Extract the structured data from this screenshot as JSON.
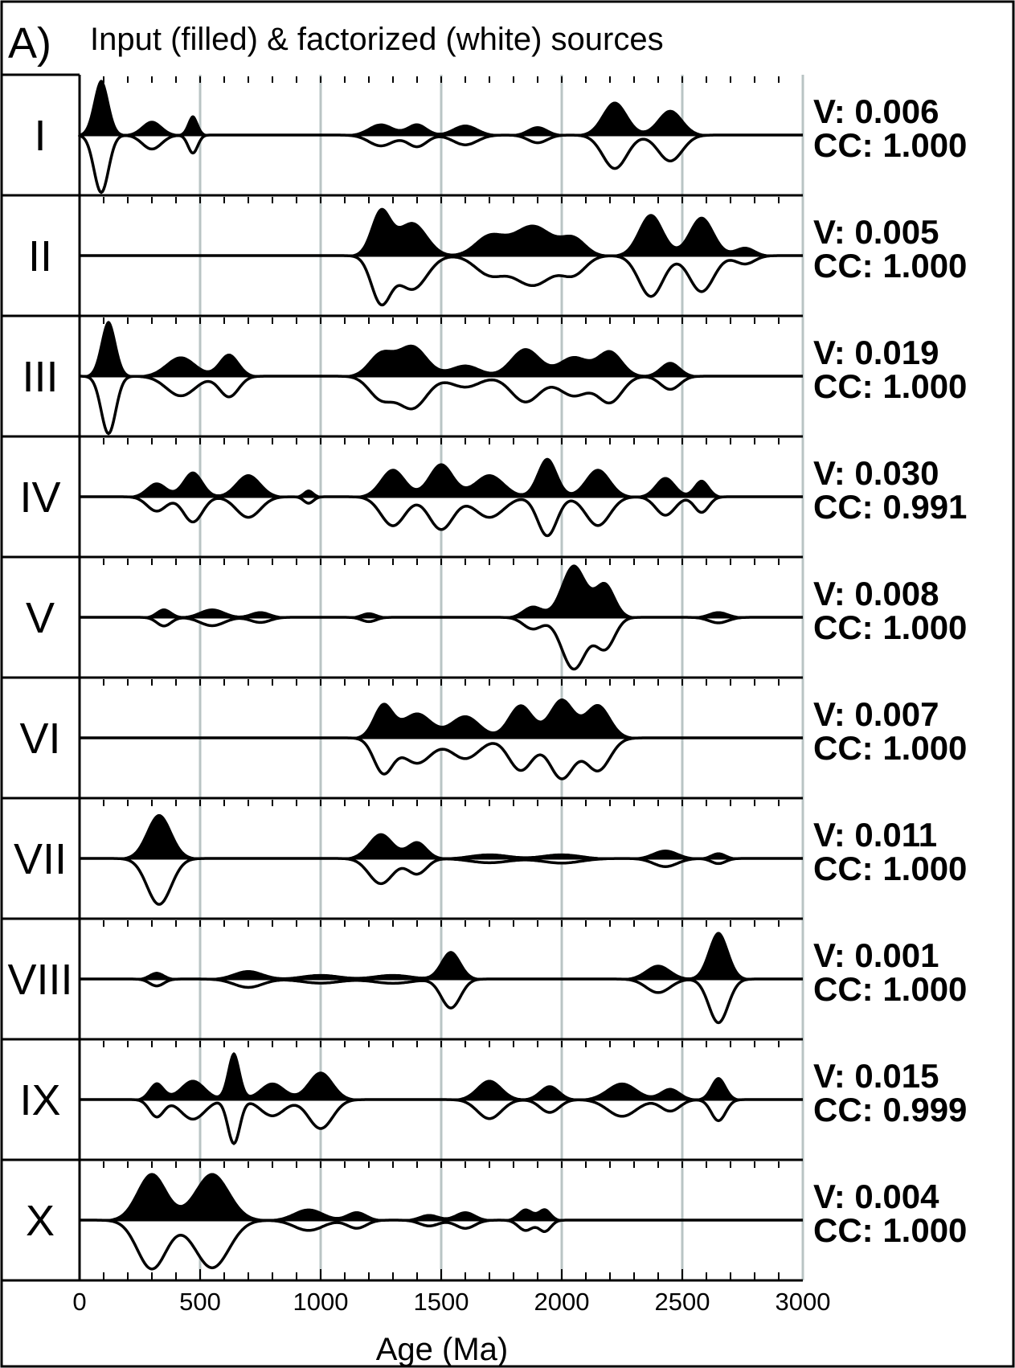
{
  "panel_label": "A)",
  "title": "Input (filled) & factorized (white) sources",
  "chart_data": {
    "type": "area",
    "title": "Input (filled) & factorized (white) sources",
    "xlabel": "Age (Ma)",
    "xlim": [
      0,
      3000
    ],
    "x_ticks": [
      "0",
      "500",
      "1000",
      "1500",
      "2000",
      "2500",
      "3000"
    ],
    "x_tick_values": [
      0,
      500,
      1000,
      1500,
      2000,
      2500,
      3000
    ],
    "gridlines_at": [
      500,
      1000,
      1500,
      2000,
      2500,
      3000
    ],
    "grid": true,
    "legend": "none",
    "series_note_filled": "Input",
    "series_note_white": "factorized",
    "panels": [
      {
        "label": "I",
        "V": "V: 0.006",
        "CC": "CC: 1.000",
        "peaks": [
          [
            90,
            30,
            1.0
          ],
          [
            300,
            40,
            0.25
          ],
          [
            470,
            20,
            0.35
          ],
          [
            1250,
            50,
            0.2
          ],
          [
            1400,
            40,
            0.2
          ],
          [
            1600,
            50,
            0.18
          ],
          [
            1900,
            40,
            0.15
          ],
          [
            2220,
            50,
            0.6
          ],
          [
            2450,
            50,
            0.45
          ]
        ]
      },
      {
        "label": "II",
        "V": "V: 0.005",
        "CC": "CC: 1.000",
        "peaks": [
          [
            1250,
            40,
            0.8
          ],
          [
            1380,
            60,
            0.6
          ],
          [
            1700,
            60,
            0.35
          ],
          [
            1880,
            80,
            0.55
          ],
          [
            2050,
            50,
            0.3
          ],
          [
            2370,
            50,
            0.75
          ],
          [
            2580,
            50,
            0.7
          ],
          [
            2760,
            40,
            0.15
          ]
        ]
      },
      {
        "label": "III",
        "V": "V: 0.019",
        "CC": "CC: 1.000",
        "peaks": [
          [
            120,
            30,
            1.0
          ],
          [
            420,
            60,
            0.35
          ],
          [
            620,
            40,
            0.4
          ],
          [
            1250,
            50,
            0.4
          ],
          [
            1380,
            60,
            0.55
          ],
          [
            1600,
            60,
            0.2
          ],
          [
            1850,
            60,
            0.5
          ],
          [
            2050,
            60,
            0.35
          ],
          [
            2200,
            50,
            0.45
          ],
          [
            2450,
            40,
            0.25
          ]
        ]
      },
      {
        "label": "IV",
        "V": "V: 0.030",
        "CC": "CC: 0.991",
        "peaks": [
          [
            320,
            40,
            0.25
          ],
          [
            470,
            40,
            0.45
          ],
          [
            700,
            50,
            0.4
          ],
          [
            950,
            20,
            0.12
          ],
          [
            1300,
            50,
            0.5
          ],
          [
            1500,
            50,
            0.6
          ],
          [
            1700,
            60,
            0.4
          ],
          [
            1940,
            40,
            0.7
          ],
          [
            2150,
            50,
            0.5
          ],
          [
            2430,
            40,
            0.35
          ],
          [
            2580,
            30,
            0.3
          ]
        ]
      },
      {
        "label": "V",
        "V": "V: 0.008",
        "CC": "CC: 1.000",
        "peaks": [
          [
            350,
            30,
            0.15
          ],
          [
            550,
            50,
            0.15
          ],
          [
            750,
            40,
            0.1
          ],
          [
            1200,
            30,
            0.08
          ],
          [
            1880,
            40,
            0.2
          ],
          [
            2050,
            50,
            0.95
          ],
          [
            2180,
            40,
            0.6
          ],
          [
            2650,
            40,
            0.1
          ]
        ]
      },
      {
        "label": "VI",
        "V": "V: 0.007",
        "CC": "CC: 1.000",
        "peaks": [
          [
            1260,
            40,
            0.6
          ],
          [
            1400,
            60,
            0.45
          ],
          [
            1600,
            60,
            0.4
          ],
          [
            1830,
            50,
            0.6
          ],
          [
            2000,
            50,
            0.7
          ],
          [
            2150,
            50,
            0.6
          ]
        ]
      },
      {
        "label": "VII",
        "V": "V: 0.011",
        "CC": "CC: 1.000",
        "peaks": [
          [
            330,
            50,
            0.8
          ],
          [
            1250,
            50,
            0.45
          ],
          [
            1400,
            40,
            0.3
          ],
          [
            1700,
            80,
            0.08
          ],
          [
            2000,
            80,
            0.08
          ],
          [
            2430,
            50,
            0.15
          ],
          [
            2650,
            30,
            0.1
          ]
        ]
      },
      {
        "label": "VIII",
        "V": "V: 0.001",
        "CC": "CC: 1.000",
        "peaks": [
          [
            320,
            30,
            0.12
          ],
          [
            700,
            60,
            0.15
          ],
          [
            1000,
            80,
            0.08
          ],
          [
            1300,
            80,
            0.08
          ],
          [
            1540,
            40,
            0.5
          ],
          [
            2400,
            50,
            0.25
          ],
          [
            2650,
            40,
            0.85
          ]
        ]
      },
      {
        "label": "IX",
        "V": "V: 0.015",
        "CC": "CC: 0.999",
        "peaks": [
          [
            320,
            30,
            0.3
          ],
          [
            470,
            50,
            0.35
          ],
          [
            640,
            25,
            0.85
          ],
          [
            800,
            50,
            0.3
          ],
          [
            1000,
            50,
            0.5
          ],
          [
            1700,
            50,
            0.35
          ],
          [
            1950,
            40,
            0.25
          ],
          [
            2250,
            60,
            0.3
          ],
          [
            2450,
            40,
            0.2
          ],
          [
            2650,
            30,
            0.4
          ]
        ]
      },
      {
        "label": "X",
        "V": "V: 0.004",
        "CC": "CC: 1.000",
        "peaks": [
          [
            300,
            60,
            0.85
          ],
          [
            550,
            70,
            0.85
          ],
          [
            950,
            60,
            0.2
          ],
          [
            1150,
            40,
            0.15
          ],
          [
            1450,
            40,
            0.1
          ],
          [
            1600,
            40,
            0.15
          ],
          [
            1850,
            30,
            0.2
          ],
          [
            1930,
            25,
            0.2
          ]
        ]
      }
    ]
  }
}
